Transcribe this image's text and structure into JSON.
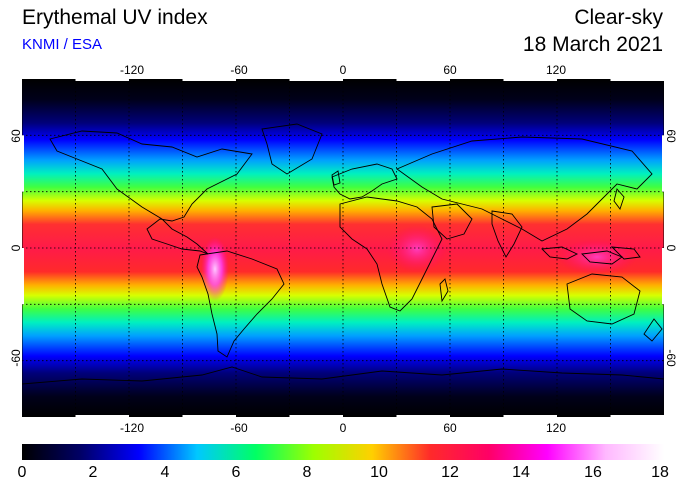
{
  "header": {
    "title": "Erythemal UV index",
    "source": "KNMI / ESA",
    "condition": "Clear-sky",
    "date": "18 March 2021"
  },
  "map": {
    "lon_ticks": [
      "-120",
      "-60",
      "0",
      "60",
      "120"
    ],
    "lat_ticks": [
      "60",
      "0",
      "-60"
    ],
    "lon_range": [
      -180,
      180
    ],
    "lat_range": [
      -90,
      90
    ],
    "grid": "dotted every 30°",
    "projection": "equirectangular"
  },
  "colorbar": {
    "labels": [
      "0",
      "2",
      "4",
      "6",
      "8",
      "10",
      "12",
      "14",
      "16",
      "18"
    ],
    "range": [
      0,
      18
    ],
    "stops": [
      "#000000",
      "#000066",
      "#0000ff",
      "#00c8ff",
      "#00ff64",
      "#9eff00",
      "#ffd000",
      "#ff2a2a",
      "#ff0066",
      "#ff00ff",
      "#ffb8ff",
      "#ffffff"
    ]
  }
}
